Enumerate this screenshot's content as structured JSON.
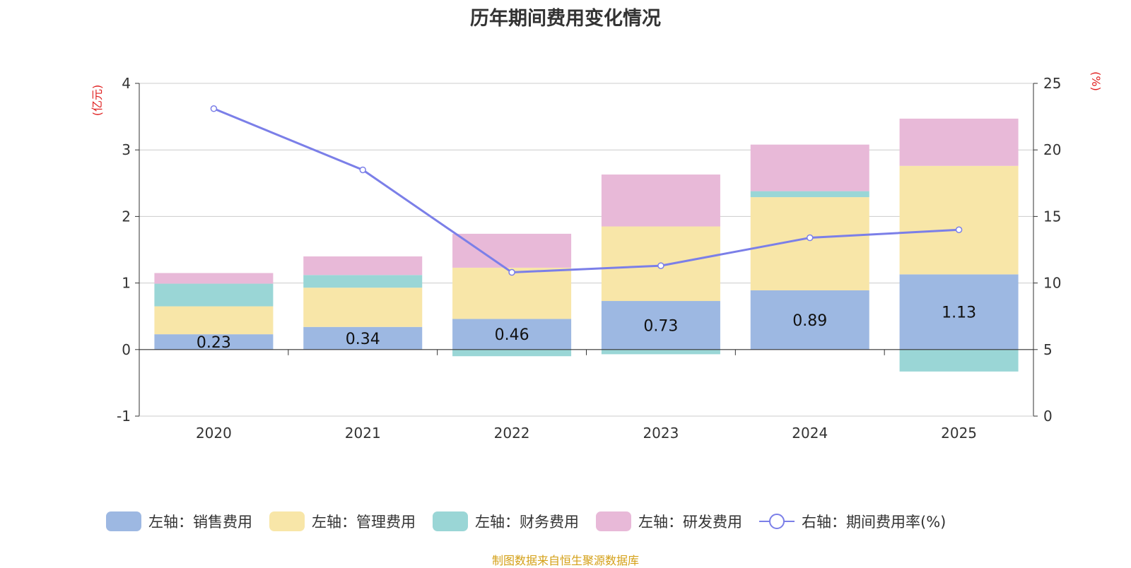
{
  "chart_data": {
    "type": "bar",
    "stacked": true,
    "title": "历年期间费用变化情况",
    "categories": [
      "2020",
      "2021",
      "2022",
      "2023",
      "2024",
      "2025"
    ],
    "y_left": {
      "label": "(亿元)",
      "ylim": [
        -1,
        4
      ],
      "ticks": [
        "-1",
        "0",
        "1",
        "2",
        "3",
        "4"
      ]
    },
    "y_right": {
      "label": "(%)",
      "ylim": [
        0,
        25
      ],
      "ticks": [
        "0",
        "5",
        "10",
        "15",
        "20",
        "25"
      ]
    },
    "series": [
      {
        "name": "左轴：销售费用",
        "axis": "left",
        "color": "#9db8e2",
        "values": [
          0.23,
          0.34,
          0.46,
          0.73,
          0.89,
          1.13
        ],
        "labels": [
          "0.23",
          "0.34",
          "0.46",
          "0.73",
          "0.89",
          "1.13"
        ]
      },
      {
        "name": "左轴：管理费用",
        "axis": "left",
        "color": "#f8e6a8",
        "values": [
          0.42,
          0.59,
          0.77,
          1.12,
          1.4,
          1.63
        ]
      },
      {
        "name": "左轴：财务费用",
        "axis": "left",
        "color": "#9ad6d6",
        "values": [
          0.34,
          0.19,
          -0.1,
          -0.07,
          0.09,
          -0.33
        ]
      },
      {
        "name": "左轴：研发费用",
        "axis": "left",
        "color": "#e8b9d8",
        "values": [
          0.16,
          0.28,
          0.51,
          0.78,
          0.7,
          0.71
        ]
      },
      {
        "name": "右轴：期间费用率(%)",
        "axis": "right",
        "type": "line",
        "color": "#7b7fe8",
        "values": [
          23.1,
          18.5,
          10.8,
          11.3,
          13.4,
          14.0
        ]
      }
    ],
    "grid": true,
    "legend_position": "bottom"
  },
  "footer": {
    "source": "制图数据来自恒生聚源数据库"
  }
}
